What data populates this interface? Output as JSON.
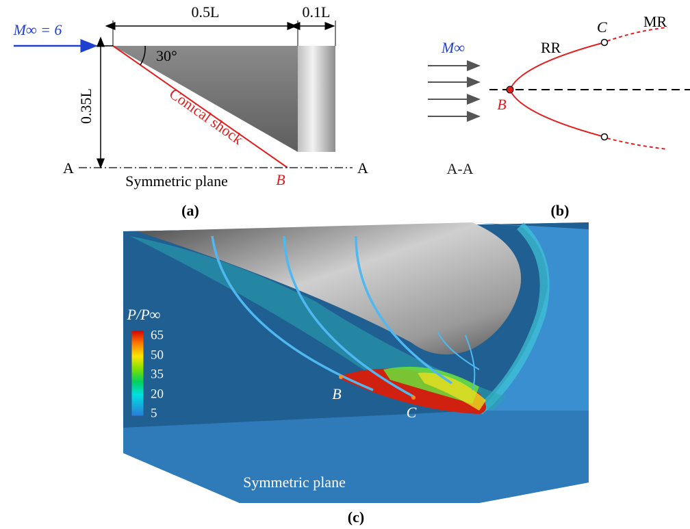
{
  "panel_a": {
    "freestream": "M∞ = 6",
    "length_cone": "0.5L",
    "length_cylinder": "0.1L",
    "angle": "30°",
    "height": "0.35L",
    "section_left": "A",
    "section_right": "A",
    "plane": "Symmetric plane",
    "shock": "Conical shock",
    "point": "B",
    "caption": "(a)"
  },
  "panel_b": {
    "freestream": "M∞",
    "regular": "RR",
    "point_c": "C",
    "mach": "MR",
    "point_b": "B",
    "section": "A-A",
    "caption": "(b)"
  },
  "panel_c": {
    "colorbar_title": "P/P∞",
    "colorbar_labels": [
      "65",
      "50",
      "35",
      "20",
      "5"
    ],
    "point_b": "B",
    "point_c": "C",
    "plane": "Symmetric plane",
    "caption": "(c)"
  }
}
